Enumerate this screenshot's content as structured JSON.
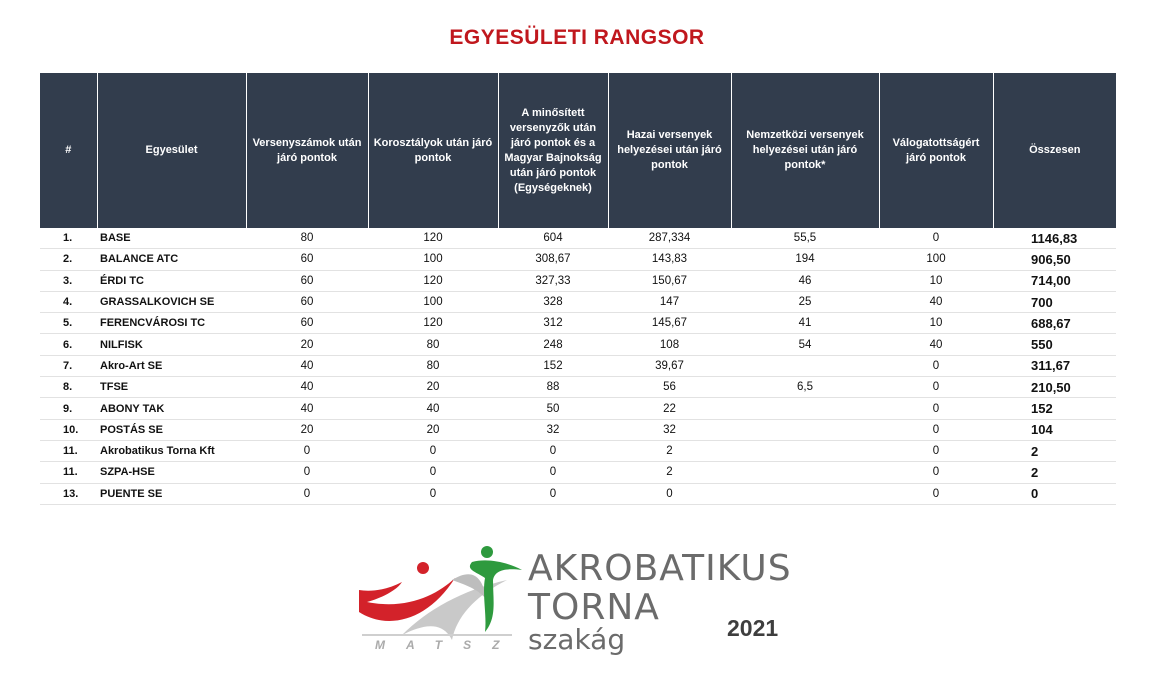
{
  "title": "EGYESÜLETI RANGSOR",
  "table": {
    "headers": [
      "#",
      "Egyesület",
      "Versenyszámok után járó pontok",
      "Korosztályok után járó pontok",
      "A minősített versenyzők után járó pontok és a Magyar Bajnokság után járó pontok (Egységeknek)",
      "Hazai versenyek helyezései után járó pontok",
      "Nemzetközi versenyek helyezései után járó pontok*",
      "Válogatottságért járó pontok",
      "Összesen"
    ],
    "rows": [
      [
        "1.",
        "BASE",
        "80",
        "120",
        "604",
        "287,334",
        "55,5",
        "0",
        "1146,83"
      ],
      [
        "2.",
        "BALANCE ATC",
        "60",
        "100",
        "308,67",
        "143,83",
        "194",
        "100",
        "906,50"
      ],
      [
        "3.",
        "ÉRDI TC",
        "60",
        "120",
        "327,33",
        "150,67",
        "46",
        "10",
        "714,00"
      ],
      [
        "4.",
        "GRASSALKOVICH SE",
        "60",
        "100",
        "328",
        "147",
        "25",
        "40",
        "700"
      ],
      [
        "5.",
        "FERENCVÁROSI TC",
        "60",
        "120",
        "312",
        "145,67",
        "41",
        "10",
        "688,67"
      ],
      [
        "6.",
        "NILFISK",
        "20",
        "80",
        "248",
        "108",
        "54",
        "40",
        "550"
      ],
      [
        "7.",
        "Akro-Art SE",
        "40",
        "80",
        "152",
        "39,67",
        "",
        "0",
        "311,67"
      ],
      [
        "8.",
        "TFSE",
        "40",
        "20",
        "88",
        "56",
        "6,5",
        "0",
        "210,50"
      ],
      [
        "9.",
        "ABONY TAK",
        "40",
        "40",
        "50",
        "22",
        "",
        "0",
        "152"
      ],
      [
        "10.",
        "POSTÁS SE",
        "20",
        "20",
        "32",
        "32",
        "",
        "0",
        "104"
      ],
      [
        "11.",
        "Akrobatikus Torna Kft",
        "0",
        "0",
        "0",
        "2",
        "",
        "0",
        "2"
      ],
      [
        "11.",
        "SZPA-HSE",
        "0",
        "0",
        "0",
        "2",
        "",
        "0",
        "2"
      ],
      [
        "13.",
        "PUENTE SE",
        "0",
        "0",
        "0",
        "0",
        "",
        "0",
        "0"
      ]
    ]
  },
  "logo": {
    "line1": "AKROBATIKUS",
    "line2": "TORNA",
    "line3": "szakág",
    "org": "MATSZ",
    "year": "2021",
    "colors": {
      "red": "#d3222a",
      "green": "#2e9a3e",
      "gray": "#6b6b6b"
    }
  }
}
